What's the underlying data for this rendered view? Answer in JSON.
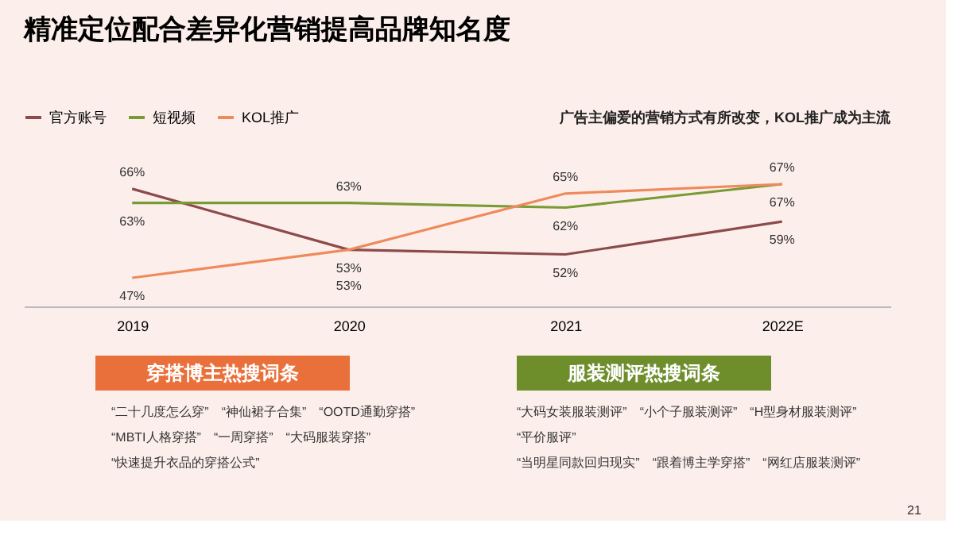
{
  "chart_data": {
    "type": "line",
    "title": "精准定位配合差异化营销提高品牌知名度",
    "subtitle": "广告主偏爱的营销方式有所改变，KOL推广成为主流",
    "categories": [
      "2019",
      "2020",
      "2021",
      "2022E"
    ],
    "series": [
      {
        "name": "官方账号",
        "color": "#8c4b4b",
        "values": [
          66,
          53,
          52,
          59
        ],
        "value_labels": [
          "66%",
          "53%",
          "52%",
          "59%"
        ]
      },
      {
        "name": "短视频",
        "color": "#7a9a35",
        "values": [
          63,
          63,
          62,
          67
        ],
        "value_labels": [
          "63%",
          "63%",
          "62%",
          "67%"
        ]
      },
      {
        "name": "KOL推广",
        "color": "#ee8a5c",
        "values": [
          47,
          53,
          65,
          67
        ],
        "value_labels": [
          "47%",
          "53%",
          "65%",
          "67%"
        ]
      }
    ],
    "legend": "top left",
    "grid": false,
    "annotations": [
      "穿搭博主热搜词条",
      "“二十几度怎么穿”　“神仙裙子合集”　“OOTD通勤穿搭”",
      "“MBTI人格穿搭”　“一周穿搭”　“大码服装穿搭”",
      "“快速提升衣品的穿搭公式”",
      "服装测评热搜词条",
      "“大码女装服装测评”　“小个子服装测评”　“H型身材服装测评”",
      "“平价服评”",
      "“当明星同款回归现实”　“跟着博主学穿搭”　“网红店服装测评”",
      "21"
    ]
  }
}
